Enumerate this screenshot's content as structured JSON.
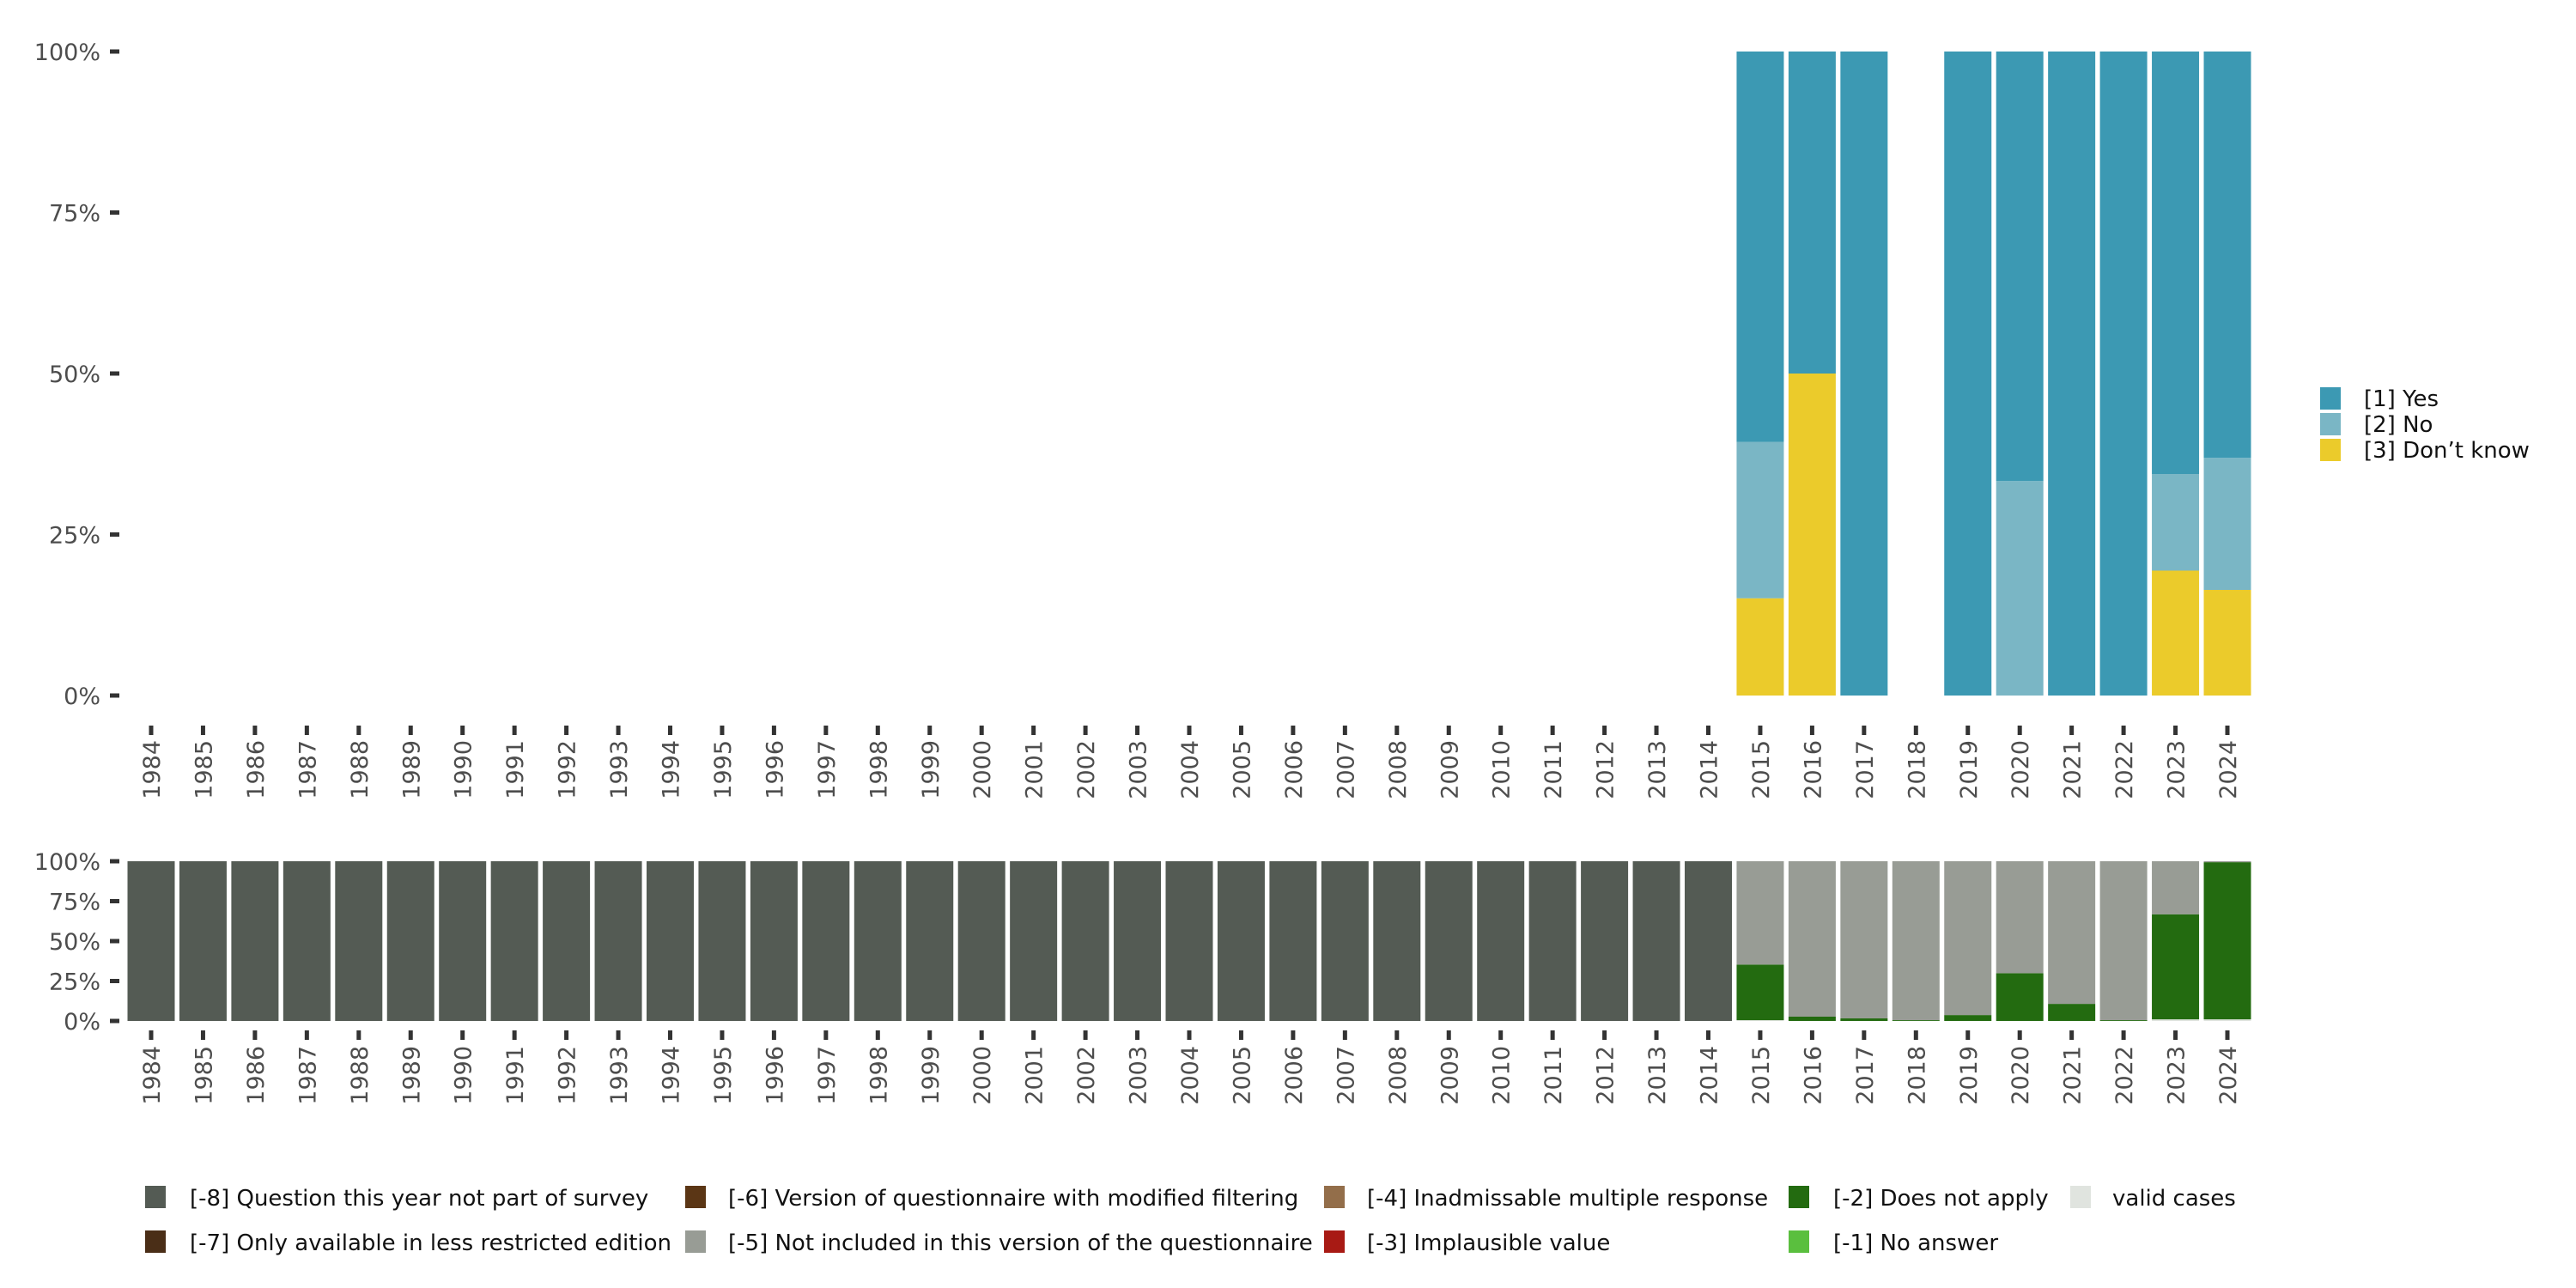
{
  "colors": {
    "yes": "#3C99B3",
    "no": "#7AB6C5",
    "dont_know": "#EBCB2B",
    "m8": "#545B54",
    "m7": "#4A2E17",
    "m6": "#5B3615",
    "m5": "#989C95",
    "m4": "#936E4A",
    "m3": "#A81A14",
    "m2": "#236B10",
    "m1": "#5ABF3E",
    "valid": "#E0E4DF",
    "axis_text": "#4d4d4d",
    "tick": "#333333"
  },
  "chart_data": [
    {
      "type": "bar",
      "stacked": true,
      "title": "",
      "xlabel": "",
      "ylabel": "",
      "ylim": [
        0,
        100
      ],
      "y_ticks": [
        "0%",
        "25%",
        "50%",
        "75%",
        "100%"
      ],
      "y_tick_values": [
        0,
        25,
        50,
        75,
        100
      ],
      "categories": [
        "1984",
        "1985",
        "1986",
        "1987",
        "1988",
        "1989",
        "1990",
        "1991",
        "1992",
        "1993",
        "1994",
        "1995",
        "1996",
        "1997",
        "1998",
        "1999",
        "2000",
        "2001",
        "2002",
        "2003",
        "2004",
        "2005",
        "2006",
        "2007",
        "2008",
        "2009",
        "2010",
        "2011",
        "2012",
        "2013",
        "2014",
        "2015",
        "2016",
        "2017",
        "2018",
        "2019",
        "2020",
        "2021",
        "2022",
        "2023",
        "2024"
      ],
      "legend_position": "right",
      "series": [
        {
          "name": "[3] Don't know",
          "color_key": "dont_know",
          "values": [
            0,
            0,
            0,
            0,
            0,
            0,
            0,
            0,
            0,
            0,
            0,
            0,
            0,
            0,
            0,
            0,
            0,
            0,
            0,
            0,
            0,
            0,
            0,
            0,
            0,
            0,
            0,
            0,
            0,
            0,
            0,
            15.1,
            50,
            0,
            0,
            0,
            0,
            0,
            0,
            19.4,
            16.4
          ]
        },
        {
          "name": "[2] No",
          "color_key": "no",
          "values": [
            0,
            0,
            0,
            0,
            0,
            0,
            0,
            0,
            0,
            0,
            0,
            0,
            0,
            0,
            0,
            0,
            0,
            0,
            0,
            0,
            0,
            0,
            0,
            0,
            0,
            0,
            0,
            0,
            0,
            0,
            0,
            24.3,
            0,
            0,
            0,
            0,
            33.3,
            0,
            0,
            15.0,
            20.5
          ]
        },
        {
          "name": "[1] Yes",
          "color_key": "yes",
          "values": [
            0,
            0,
            0,
            0,
            0,
            0,
            0,
            0,
            0,
            0,
            0,
            0,
            0,
            0,
            0,
            0,
            0,
            0,
            0,
            0,
            0,
            0,
            0,
            0,
            0,
            0,
            0,
            0,
            0,
            0,
            0,
            60.6,
            50,
            100,
            0,
            100,
            66.7,
            100,
            100,
            65.6,
            63.1
          ]
        }
      ],
      "legend": [
        {
          "label": "[1] Yes",
          "color_key": "yes"
        },
        {
          "label": "[2] No",
          "color_key": "no"
        },
        {
          "label": "[3] Don’t know",
          "color_key": "dont_know"
        }
      ]
    },
    {
      "type": "bar",
      "stacked": true,
      "title": "",
      "xlabel": "",
      "ylabel": "",
      "ylim": [
        0,
        100
      ],
      "y_ticks": [
        "0%",
        "25%",
        "50%",
        "75%",
        "100%"
      ],
      "y_tick_values": [
        0,
        25,
        50,
        75,
        100
      ],
      "categories": [
        "1984",
        "1985",
        "1986",
        "1987",
        "1988",
        "1989",
        "1990",
        "1991",
        "1992",
        "1993",
        "1994",
        "1995",
        "1996",
        "1997",
        "1998",
        "1999",
        "2000",
        "2001",
        "2002",
        "2003",
        "2004",
        "2005",
        "2006",
        "2007",
        "2008",
        "2009",
        "2010",
        "2011",
        "2012",
        "2013",
        "2014",
        "2015",
        "2016",
        "2017",
        "2018",
        "2019",
        "2020",
        "2021",
        "2022",
        "2023",
        "2024"
      ],
      "legend_position": "bottom",
      "series": [
        {
          "name": "valid cases",
          "color_key": "valid",
          "values": [
            0,
            0,
            0,
            0,
            0,
            0,
            0,
            0,
            0,
            0,
            0,
            0,
            0,
            0,
            0,
            0,
            0,
            0,
            0,
            0,
            0,
            0,
            0,
            0,
            0,
            0,
            0,
            0,
            0,
            0,
            0,
            0.5,
            0,
            0,
            0,
            0,
            0,
            0,
            0,
            1.0,
            1.0
          ]
        },
        {
          "name": "[-2] Does not apply",
          "color_key": "m2",
          "values": [
            0,
            0,
            0,
            0,
            0,
            0,
            0,
            0,
            0,
            0,
            0,
            0,
            0,
            0,
            0,
            0,
            0,
            0,
            0,
            0,
            0,
            0,
            0,
            0,
            0,
            0,
            0,
            0,
            0,
            0,
            0,
            34.8,
            2.7,
            1.6,
            0.5,
            3.7,
            29.9,
            10.7,
            0.5,
            65.8,
            98.4
          ]
        },
        {
          "name": "[-5] Not included in this version of the questionnaire",
          "color_key": "m5",
          "values": [
            0,
            0,
            0,
            0,
            0,
            0,
            0,
            0,
            0,
            0,
            0,
            0,
            0,
            0,
            0,
            0,
            0,
            0,
            0,
            0,
            0,
            0,
            0,
            0,
            0,
            0,
            0,
            0,
            0,
            0,
            0,
            64.7,
            97.3,
            98.4,
            99.5,
            96.3,
            70.1,
            89.3,
            99.5,
            33.2,
            0.6
          ]
        },
        {
          "name": "[-8] Question this year not part of survey",
          "color_key": "m8",
          "values": [
            100,
            100,
            100,
            100,
            100,
            100,
            100,
            100,
            100,
            100,
            100,
            100,
            100,
            100,
            100,
            100,
            100,
            100,
            100,
            100,
            100,
            100,
            100,
            100,
            100,
            100,
            100,
            100,
            100,
            100,
            100,
            0,
            0,
            0,
            0,
            0,
            0,
            0,
            0,
            0,
            0
          ]
        }
      ],
      "legend": [
        {
          "label": "[-8] Question this year not part of survey",
          "color_key": "m8"
        },
        {
          "label": "[-7] Only available in less restricted edition",
          "color_key": "m7"
        },
        {
          "label": "[-6] Version of questionnaire with modified filtering",
          "color_key": "m6"
        },
        {
          "label": "[-5] Not included in this version of the questionnaire",
          "color_key": "m5"
        },
        {
          "label": "[-4] Inadmissable multiple response",
          "color_key": "m4"
        },
        {
          "label": "[-3] Implausible value",
          "color_key": "m3"
        },
        {
          "label": "[-2] Does not apply",
          "color_key": "m2"
        },
        {
          "label": "[-1] No answer",
          "color_key": "m1"
        },
        {
          "label": "valid cases",
          "color_key": "valid"
        }
      ]
    }
  ]
}
